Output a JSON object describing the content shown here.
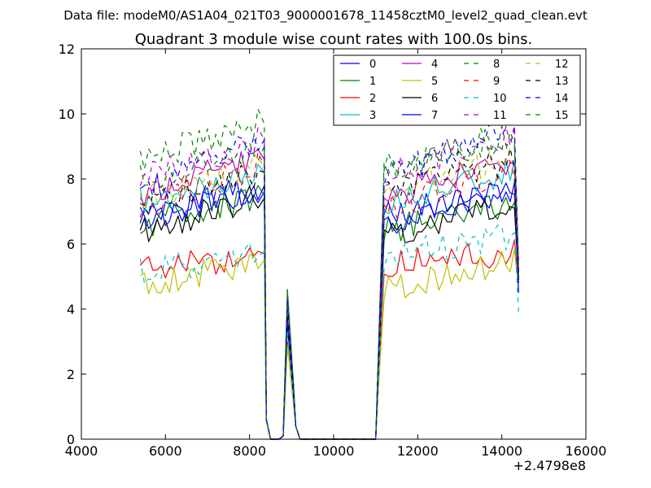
{
  "suptitle": "Data file: modeM0/AS1A04_021T03_9000001678_11458cztM0_level2_quad_clean.evt",
  "chart_data": {
    "type": "line",
    "title": "Quadrant 3 module wise count rates with 100.0s bins.",
    "xlabel": "",
    "ylabel": "",
    "xlim": [
      4000,
      16000
    ],
    "ylim": [
      0,
      12
    ],
    "xticks": [
      4000,
      6000,
      8000,
      10000,
      12000,
      14000,
      16000
    ],
    "yticks": [
      0,
      2,
      4,
      6,
      8,
      10,
      12
    ],
    "x_offset_label": "+2.4798e8",
    "legend_position": "top-right",
    "legend_columns": 4,
    "grid": false,
    "seed": 20250101,
    "segments": {
      "seg1_x": [
        5400,
        8300
      ],
      "bin_width": 100,
      "peak_x": [
        8900,
        9100
      ],
      "seg2_x": [
        11200,
        14400
      ]
    },
    "series": [
      {
        "name": "0",
        "color": "#0000ff",
        "style": "solid",
        "level1": 6.9,
        "level2": 6.9,
        "trend": 0.7,
        "peak": 3.8,
        "end": 4.8
      },
      {
        "name": "1",
        "color": "#008000",
        "style": "solid",
        "level1": 6.6,
        "level2": 6.4,
        "trend": 0.9,
        "peak": 3.6,
        "end": 5.0
      },
      {
        "name": "2",
        "color": "#ff0000",
        "style": "solid",
        "level1": 5.2,
        "level2": 5.3,
        "trend": 0.5,
        "peak": 3.0,
        "end": 4.8
      },
      {
        "name": "3",
        "color": "#00bfbf",
        "style": "solid",
        "level1": 7.3,
        "level2": 7.3,
        "trend": 0.9,
        "peak": 3.9,
        "end": 5.2
      },
      {
        "name": "4",
        "color": "#bf00bf",
        "style": "solid",
        "level1": 7.6,
        "level2": 7.5,
        "trend": 1.0,
        "peak": 4.5,
        "end": 5.5
      },
      {
        "name": "5",
        "color": "#bfbf00",
        "style": "solid",
        "level1": 4.7,
        "level2": 4.6,
        "trend": 0.8,
        "peak": 2.9,
        "end": 4.6
      },
      {
        "name": "6",
        "color": "#000000",
        "style": "solid",
        "level1": 6.4,
        "level2": 6.3,
        "trend": 1.0,
        "peak": 3.5,
        "end": 4.9
      },
      {
        "name": "7",
        "color": "#0000ff",
        "style": "solid",
        "level1": 6.7,
        "level2": 6.6,
        "trend": 1.1,
        "peak": 3.7,
        "end": 4.5
      },
      {
        "name": "8",
        "color": "#008000",
        "style": "dashed",
        "level1": 8.6,
        "level2": 8.3,
        "trend": 1.1,
        "peak": 4.6,
        "end": 5.0
      },
      {
        "name": "9",
        "color": "#ff0000",
        "style": "dashed",
        "level1": 7.2,
        "level2": 7.1,
        "trend": 1.2,
        "peak": 4.0,
        "end": 5.0
      },
      {
        "name": "10",
        "color": "#00bfbf",
        "style": "dashed",
        "level1": 5.1,
        "level2": 5.6,
        "trend": 0.7,
        "peak": 3.3,
        "end": 3.9
      },
      {
        "name": "11",
        "color": "#bf00bf",
        "style": "dashed",
        "level1": 8.0,
        "level2": 8.2,
        "trend": 1.2,
        "peak": 4.4,
        "end": 5.4
      },
      {
        "name": "12",
        "color": "#bfbf00",
        "style": "dashed",
        "level1": 7.4,
        "level2": 7.7,
        "trend": 1.0,
        "peak": 4.2,
        "end": 5.3
      },
      {
        "name": "13",
        "color": "#000000",
        "style": "dashed",
        "level1": 7.2,
        "level2": 7.6,
        "trend": 1.0,
        "peak": 4.0,
        "end": 5.1
      },
      {
        "name": "14",
        "color": "#0000ff",
        "style": "dashed",
        "level1": 7.6,
        "level2": 8.0,
        "trend": 1.6,
        "peak": 4.3,
        "end": 5.0
      },
      {
        "name": "15",
        "color": "#008000",
        "style": "dashed",
        "level1": 8.0,
        "level2": 8.3,
        "trend": 1.0,
        "peak": 4.6,
        "end": 5.3
      }
    ]
  }
}
